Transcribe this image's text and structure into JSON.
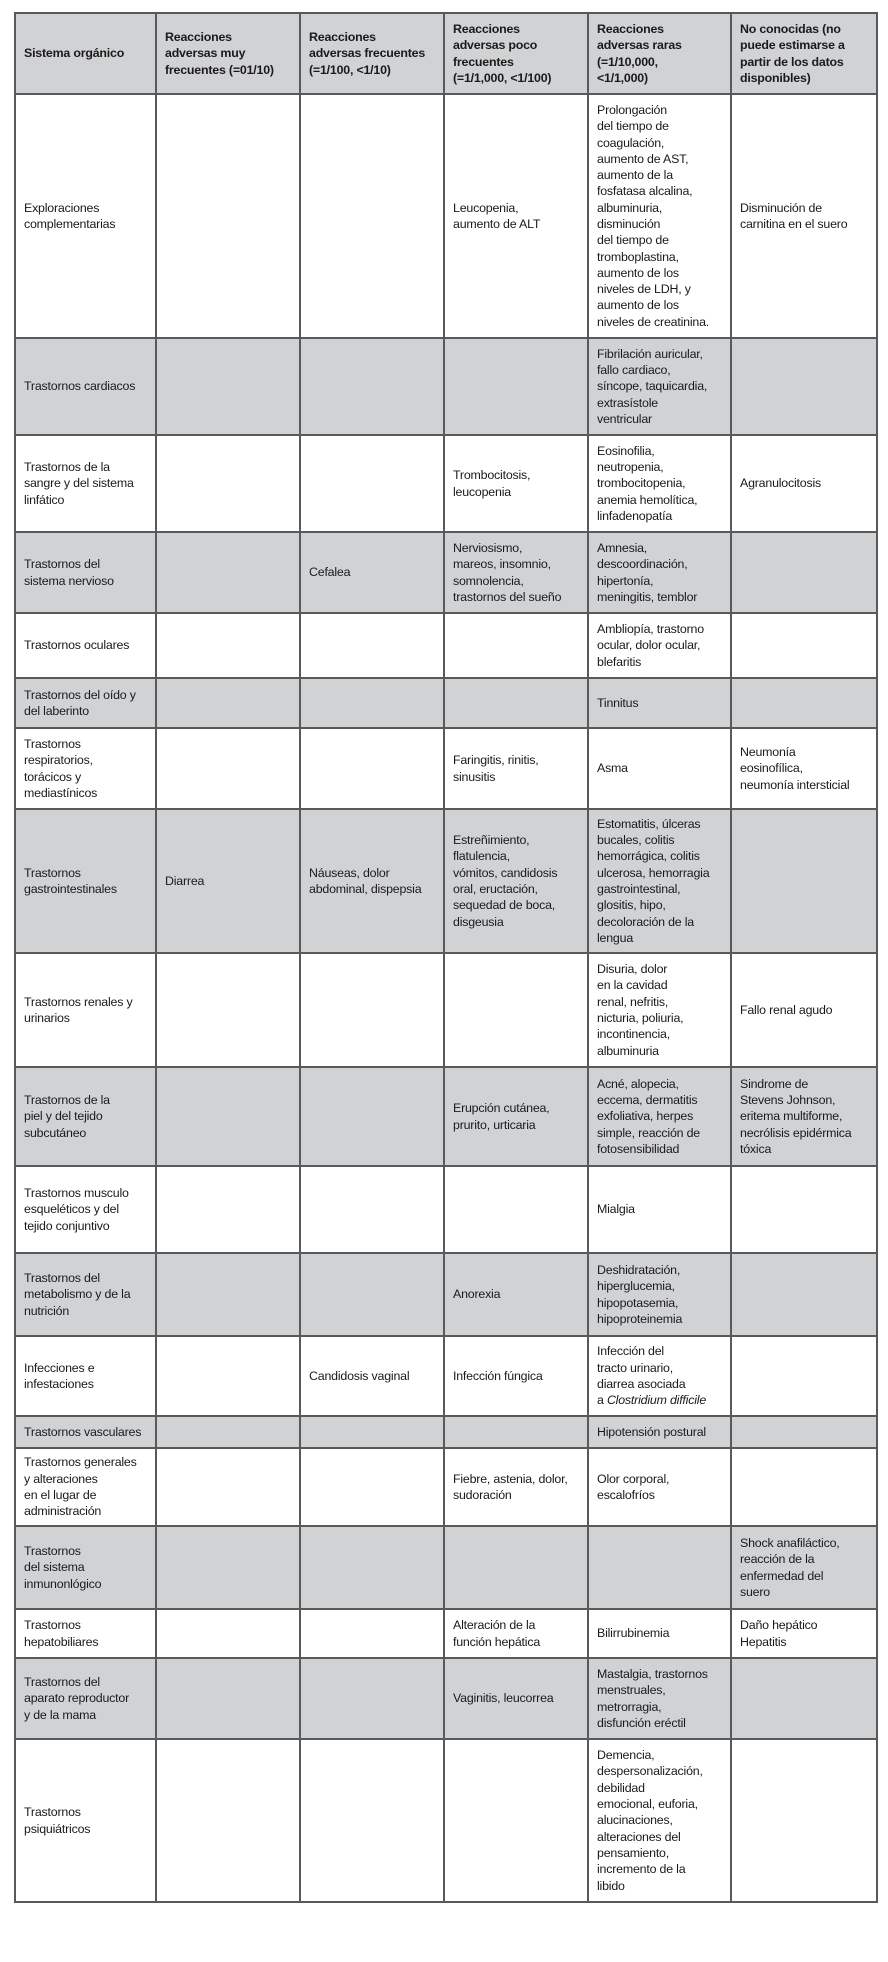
{
  "table": {
    "headers": [
      "Sistema orgánico",
      "Reacciones\nadversas muy\nfrecuentes (=01/10)",
      "Reacciones\nadversas frecuentes\n(=1/100, <1/10)",
      "Reacciones\nadversas poco\nfrecuentes\n(=1/1,000, <1/100)",
      "Reacciones\nadversas raras\n(=1/10,000,\n<1/1,000)",
      "No conocidas (no\npuede estimarse a\npartir de los datos\ndisponibles)"
    ],
    "shade_color": "#d1d2d4",
    "border_color": "#58595b",
    "rows": [
      [
        "Exploraciones\ncomplementarias",
        "",
        "",
        "Leucopenia,\naumento de ALT",
        "Prolongación\ndel tiempo de\ncoagulación,\naumento de AST,\naumento de la\nfosfatasa alcalina,\nalbuminuria,\ndisminución\ndel tiempo de\ntromboplastina,\naumento de los\nniveles de LDH, y\naumento de los\nniveles de creatinina.",
        "Disminución de\ncarnitina en el suero"
      ],
      [
        "Trastornos cardiacos",
        "",
        "",
        "",
        "Fibrilación auricular,\nfallo cardiaco,\nsíncope, taquicardia,\nextrasístole\nventricular",
        ""
      ],
      [
        "Trastornos de la\nsangre y del sistema\nlinfático",
        "",
        "",
        "Trombocitosis,\nleucopenia",
        "Eosinofilia,\nneutropenia,\ntrombocitopenia,\nanemia hemolítica,\nlinfadenopatía",
        "Agranulocitosis"
      ],
      [
        "Trastornos del\nsistema nervioso",
        "",
        "Cefalea",
        "Nerviosismo,\nmareos, insomnio,\nsomnolencia,\ntrastornos del sueño",
        "Amnesia,\ndescoordinación,\nhipertonía,\nmeningitis, temblor",
        ""
      ],
      [
        "Trastornos oculares",
        "",
        "",
        "",
        "Ambliopía, trastorno\nocular, dolor ocular,\nblefaritis",
        ""
      ],
      [
        "Trastornos del oído y\ndel laberinto",
        "",
        "",
        "",
        "Tinnitus",
        ""
      ],
      [
        "Trastornos\nrespiratorios,\ntorácicos y\nmediastínicos",
        "",
        "",
        "Faringitis, rinitis,\nsinusitis",
        "Asma",
        "Neumonía\neosinofílica,\nneumonía intersticial"
      ],
      [
        "Trastornos\ngastrointestinales",
        "Diarrea",
        "Náuseas, dolor\nabdominal, dispepsia",
        "Estreñimiento,\nflatulencia,\nvómitos, candidosis\noral, eructación,\nsequedad de boca,\ndisgeusia",
        "Estomatitis, úlceras\nbucales, colitis\nhemorrágica, colitis\nulcerosa, hemorragia\ngastrointestinal,\nglositis, hipo,\ndecoloración de la\nlengua",
        ""
      ],
      [
        "Trastornos renales y\nurinarios",
        "",
        "",
        "",
        "Disuria, dolor\nen la cavidad\nrenal, nefritis,\nnicturia, poliuria,\nincontinencia,\nalbuminuria",
        "Fallo renal agudo"
      ],
      [
        "Trastornos de la\npiel y del tejido\nsubcutáneo",
        "",
        "",
        "Erupción cutánea,\nprurito, urticaria",
        "Acné, alopecia,\neccema, dermatitis\nexfoliativa, herpes\nsimple, reacción de\nfotosensibilidad",
        "Sindrome de\nStevens Johnson,\neritema multiforme,\nnecrólisis epidérmica\ntóxica"
      ],
      [
        "Trastornos musculo\nesqueléticos y del\ntejido conjuntivo",
        "",
        "",
        "",
        "Mialgia",
        ""
      ],
      [
        "Trastornos del\nmetabolismo y de la\nnutrición",
        "",
        "",
        "Anorexia",
        "Deshidratación,\nhiperglucemia,\nhipopotasemia,\nhipoproteinemia",
        ""
      ],
      [
        "Infecciones e\ninfestaciones",
        "",
        "Candidosis vaginal",
        "Infección fúngica",
        "Infección del\ntracto urinario,\ndiarrea asociada\na Clostridium difficile",
        ""
      ],
      [
        "Trastornos vasculares",
        "",
        "",
        "",
        "Hipotensión postural",
        ""
      ],
      [
        "Trastornos generales\ny alteraciones\nen el lugar de\nadministración",
        "",
        "",
        "Fiebre, astenia, dolor,\nsudoración",
        "Olor corporal,\nescalofríos",
        ""
      ],
      [
        "Trastornos\ndel sistema\ninmunonlógico",
        "",
        "",
        "",
        "",
        "Shock anafiláctico,\nreacción de la\nenfermedad del\nsuero"
      ],
      [
        "Trastornos\nhepatobiliares",
        "",
        "",
        "Alteración de la\nfunción hepática",
        "Bilirrubinemia",
        "Daño hepático\nHepatitis"
      ],
      [
        "Trastornos del\naparato reproductor\ny de la mama",
        "",
        "",
        "Vaginitis, leucorrea",
        "Mastalgia, trastornos\nmenstruales,\nmetrorragia,\ndisfunción eréctil",
        ""
      ],
      [
        "Trastornos\npsiquiátricos",
        "",
        "",
        "",
        "Demencia,\ndespersonalización,\ndebilidad\nemocional, euforia,\nalucinaciones,\nalteraciones del\npensamiento,\nincremento de la\nlibido",
        ""
      ]
    ]
  }
}
